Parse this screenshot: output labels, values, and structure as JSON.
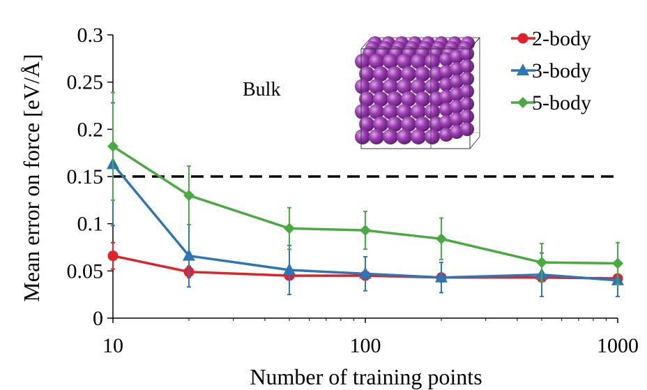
{
  "chart_data": {
    "type": "line",
    "xlabel": "Number of training points",
    "ylabel": "Mean error on force [eV/Å]",
    "x_scale": "log",
    "xlim": [
      10,
      1000
    ],
    "ylim": [
      0,
      0.3
    ],
    "x_ticks": [
      10,
      100,
      1000
    ],
    "x_tick_labels": [
      "10",
      "100",
      "1000"
    ],
    "y_ticks": [
      0,
      0.05,
      0.1,
      0.15,
      0.2,
      0.25,
      0.3
    ],
    "y_tick_labels": [
      "0",
      "0.05",
      "0.1",
      "0.15",
      "0.2",
      "0.25",
      "0.3"
    ],
    "grid": false,
    "legend_position": "top-right",
    "annotation": "Bulk",
    "reference_line": {
      "y": 0.15,
      "style": "dashed",
      "color": "#000000"
    },
    "x": [
      10,
      20,
      50,
      100,
      200,
      500,
      1000
    ],
    "series": [
      {
        "name": "2-body",
        "color": "#e0222a",
        "marker": "circle",
        "values": [
          0.066,
          0.049,
          0.045,
          0.045,
          0.043,
          0.043,
          0.042
        ],
        "errors": [
          0.014,
          0.006,
          0.004,
          0.004,
          0.003,
          0.003,
          0.003
        ]
      },
      {
        "name": "3-body",
        "color": "#2e75b6",
        "marker": "triangle",
        "values": [
          0.163,
          0.066,
          0.051,
          0.047,
          0.043,
          0.046,
          0.04
        ],
        "errors": [
          0.065,
          0.033,
          0.026,
          0.018,
          0.016,
          0.023,
          0.017
        ]
      },
      {
        "name": "5-body",
        "color": "#4aaa42",
        "marker": "diamond",
        "values": [
          0.182,
          0.13,
          0.095,
          0.093,
          0.084,
          0.059,
          0.058
        ],
        "errors": [
          0.057,
          0.031,
          0.022,
          0.02,
          0.022,
          0.02,
          0.022
        ]
      }
    ]
  },
  "inset": {
    "description_icon": "purple-atom-cube-icon",
    "sphere_color": "#9b3fb0"
  }
}
